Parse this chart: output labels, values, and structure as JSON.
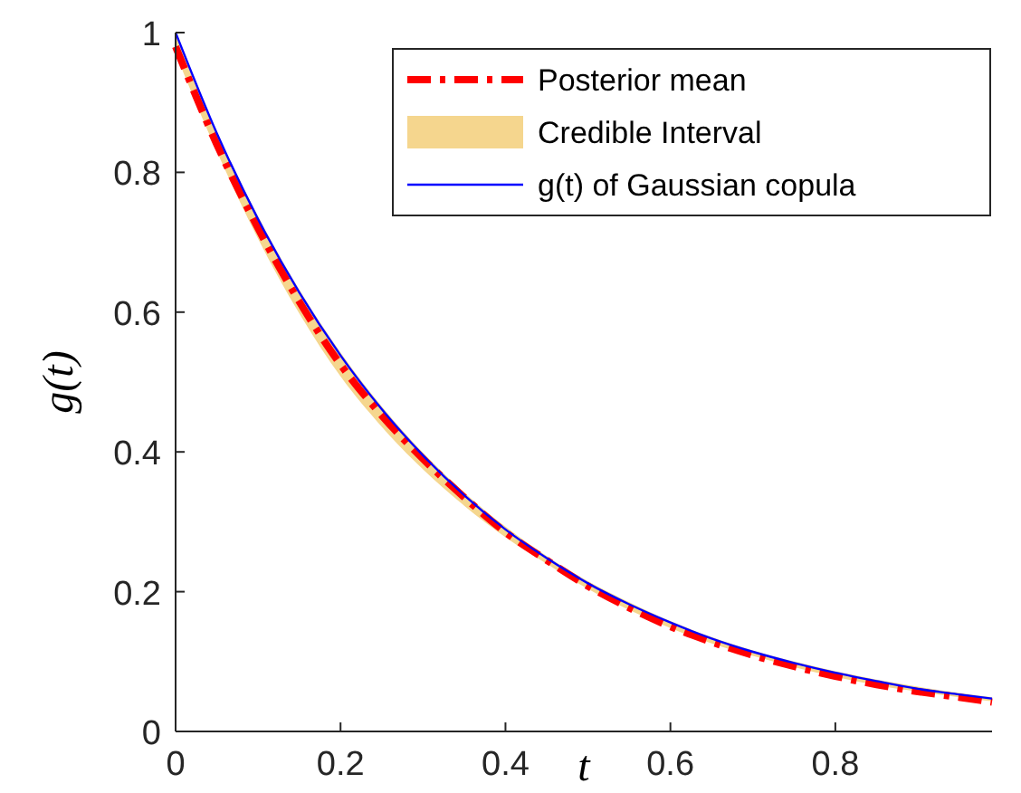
{
  "chart_data": {
    "type": "line",
    "xlabel": "t",
    "ylabel": "g(t)",
    "x": [
      0,
      0.05,
      0.1,
      0.15,
      0.2,
      0.25,
      0.3,
      0.35,
      0.4,
      0.45,
      0.5,
      0.55,
      0.6,
      0.65,
      0.7,
      0.75,
      0.8,
      0.85,
      0.9,
      0.95,
      0.99
    ],
    "xlim": [
      0,
      0.99
    ],
    "ylim": [
      0,
      1
    ],
    "xticks": [
      0,
      0.2,
      0.4,
      0.6,
      0.8
    ],
    "yticks": [
      0,
      0.2,
      0.4,
      0.6,
      0.8,
      1
    ],
    "grid": false,
    "legend": "top right",
    "annotations": [
      "Credible Interval"
    ],
    "series": [
      {
        "name": "Posterior mean",
        "type": "line",
        "color": "#ff0000",
        "line_style": "dashed",
        "values": [
          0.98,
          0.84,
          0.72,
          0.615,
          0.525,
          0.452,
          0.39,
          0.335,
          0.285,
          0.245,
          0.208,
          0.177,
          0.15,
          0.128,
          0.109,
          0.093,
          0.079,
          0.067,
          0.057,
          0.049,
          0.042
        ],
        "lower": [
          0.97,
          0.83,
          0.705,
          0.598,
          0.508,
          0.436,
          0.375,
          0.323,
          0.278,
          0.24,
          0.204,
          0.174,
          0.148,
          0.126,
          0.108,
          0.092,
          0.078,
          0.066,
          0.057,
          0.049,
          0.043
        ],
        "upper": [
          1,
          0.858,
          0.737,
          0.632,
          0.542,
          0.465,
          0.399,
          0.342,
          0.293,
          0.251,
          0.215,
          0.185,
          0.158,
          0.135,
          0.116,
          0.1,
          0.086,
          0.074,
          0.064,
          0.055,
          0.049
        ]
      },
      {
        "name": "g(t) of Gaussian copula",
        "type": "line",
        "color": "#0000ff",
        "line_style": "solid",
        "values": [
          1,
          0.856,
          0.733,
          0.628,
          0.538,
          0.461,
          0.395,
          0.338,
          0.289,
          0.248,
          0.212,
          0.182,
          0.156,
          0.133,
          0.114,
          0.098,
          0.084,
          0.072,
          0.061,
          0.053,
          0.047
        ]
      }
    ]
  }
}
